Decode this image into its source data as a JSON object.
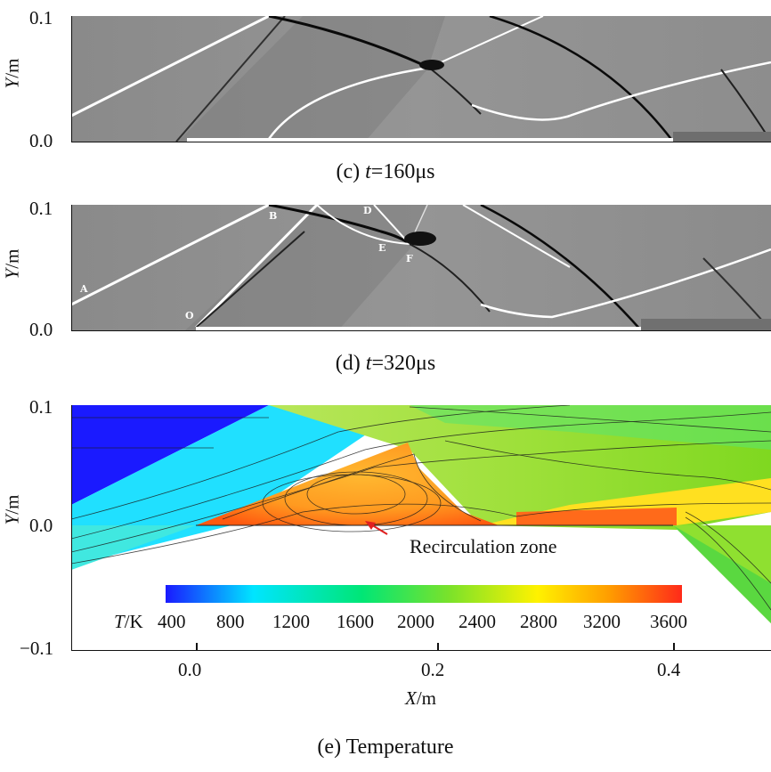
{
  "panel_c": {
    "y_ticks": [
      "0.1",
      "0.0"
    ],
    "y_label_var": "Y",
    "y_label_unit": "/m",
    "caption_prefix": "(c)",
    "caption_var": "t",
    "caption_value": "=160μs"
  },
  "panel_d": {
    "y_ticks": [
      "0.1",
      "0.0"
    ],
    "y_label_var": "Y",
    "y_label_unit": "/m",
    "caption_prefix": "(d)",
    "caption_var": "t",
    "caption_value": "=320μs",
    "points": [
      "A",
      "B",
      "D",
      "E",
      "F",
      "O"
    ]
  },
  "panel_e": {
    "y_ticks": [
      "0.1",
      "0.0",
      "−0.1"
    ],
    "x_ticks": [
      "0.0",
      "0.2",
      "0.4"
    ],
    "y_label_var": "Y",
    "y_label_unit": "/m",
    "x_label_var": "X",
    "x_label_unit": "/m",
    "annotation": "Recirculation zone",
    "colorbar_var": "T",
    "colorbar_unit": "/K",
    "colorbar_ticks": [
      "400",
      "800",
      "1200",
      "1600",
      "2000",
      "2400",
      "2800",
      "3200",
      "3600"
    ],
    "caption_prefix": "(e)",
    "caption_text": "Temperature"
  },
  "colors": {
    "colormap": [
      "#1a1aff",
      "#00e5ff",
      "#00e676",
      "#7be22a",
      "#fff200",
      "#ff9c00",
      "#ff2a1a"
    ],
    "schlieren_bg": "#8c8c8c",
    "annotation_arrow": "#e02020"
  }
}
